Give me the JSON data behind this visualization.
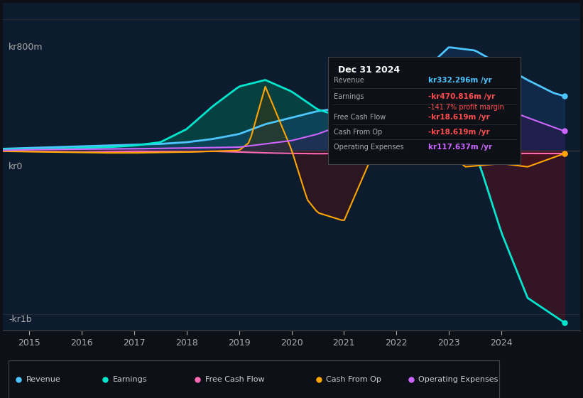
{
  "bg_color": "#0d1117",
  "plot_bg_color": "#0d1b2e",
  "title_box": {
    "date": "Dec 31 2024",
    "rows": [
      {
        "label": "Revenue",
        "value": "kr332.296m /yr",
        "value_color": "#4dc6ff"
      },
      {
        "label": "Earnings",
        "value": "-kr470.816m /yr",
        "value_color": "#ff4d4d",
        "sub": "-141.7% profit margin",
        "sub_color": "#ff4d4d"
      },
      {
        "label": "Free Cash Flow",
        "value": "-kr18.619m /yr",
        "value_color": "#ff4d4d"
      },
      {
        "label": "Cash From Op",
        "value": "-kr18.619m /yr",
        "value_color": "#ff4d4d"
      },
      {
        "label": "Operating Expenses",
        "value": "kr117.637m /yr",
        "value_color": "#cc66ff"
      }
    ]
  },
  "ylabel_top": "kr800m",
  "ylabel_bottom": "-kr1b",
  "ylabel_zero": "kr0",
  "x_years": [
    2015,
    2016,
    2017,
    2018,
    2019,
    2020,
    2021,
    2022,
    2023,
    2024
  ],
  "series": {
    "Revenue": {
      "color": "#4dc6ff",
      "fill_color": "#1a4a6e",
      "line_width": 2.0
    },
    "Earnings": {
      "color": "#00e5cc",
      "fill_color": "#005a50",
      "line_width": 2.0
    },
    "FreeCashFlow": {
      "color": "#ff69b4",
      "fill_color": "#7a1a3a",
      "line_width": 1.5
    },
    "CashFromOp": {
      "color": "#ffa500",
      "fill_color": "#5a3a00",
      "line_width": 1.5
    },
    "OperatingExpenses": {
      "color": "#cc66ff",
      "fill_color": "#4a1a6e",
      "line_width": 1.5
    }
  },
  "legend": [
    {
      "label": "Revenue",
      "color": "#4dc6ff"
    },
    {
      "label": "Earnings",
      "color": "#00e5cc"
    },
    {
      "label": "Free Cash Flow",
      "color": "#ff69b4"
    },
    {
      "label": "Cash From Op",
      "color": "#ffa500"
    },
    {
      "label": "Operating Expenses",
      "color": "#cc66ff"
    }
  ]
}
